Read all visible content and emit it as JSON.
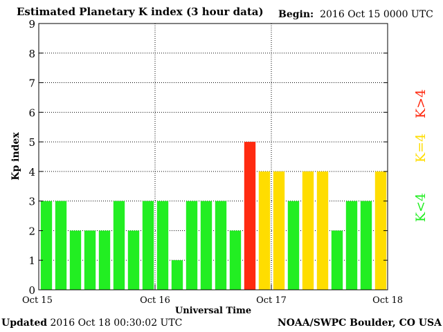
{
  "header": {
    "title": "Estimated Planetary K index (3 hour data)",
    "begin_label": "Begin:",
    "begin_value": "2016 Oct 15 0000 UTC"
  },
  "footer": {
    "updated_label": "Updated",
    "updated_value": "2016 Oct 18 00:30:02 UTC",
    "credit": "NOAA/SWPC Boulder, CO USA"
  },
  "legend": {
    "placement": "right",
    "items": [
      {
        "label": "K<4",
        "color": "#22ee22"
      },
      {
        "label": "K=4",
        "color": "#ffdd00"
      },
      {
        "label": "K>4",
        "color": "#ff2a10"
      }
    ]
  },
  "colors": {
    "low": "#22ee22",
    "equal": "#ffdd00",
    "high": "#ff2a10"
  },
  "chart_data": {
    "type": "bar",
    "title": "Estimated Planetary K index (3 hour data)",
    "xlabel": "Universal Time",
    "ylabel": "Kp index",
    "ylim": [
      0,
      9
    ],
    "yticks": [
      0,
      1,
      2,
      3,
      4,
      5,
      6,
      7,
      8,
      9
    ],
    "x_start": "2016-10-15 00:00 UTC",
    "interval_hours": 3,
    "xticks": [
      "Oct 15",
      "Oct 16",
      "Oct 17",
      "Oct 18"
    ],
    "grid": true,
    "values": [
      3,
      3,
      2,
      2,
      2,
      3,
      2,
      3,
      3,
      1,
      3,
      3,
      3,
      2,
      5,
      4,
      4,
      3,
      4,
      4,
      2,
      3,
      3,
      4
    ]
  }
}
